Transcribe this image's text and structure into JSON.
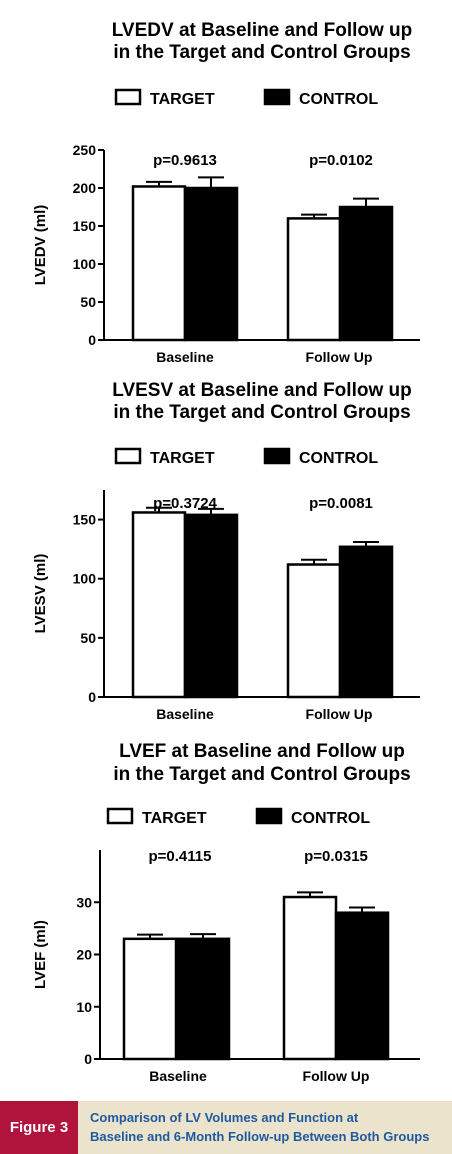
{
  "chart_data": [
    {
      "type": "bar",
      "title": [
        "LVEDV at Baseline and Follow up",
        "in the Target and Control Groups"
      ],
      "ylabel": "LVEDV (ml)",
      "ylim": [
        0,
        250
      ],
      "yticks": [
        0,
        50,
        100,
        150,
        200,
        250
      ],
      "categories": [
        "Baseline",
        "Follow Up"
      ],
      "legend_position": "top-center",
      "series": [
        {
          "name": "TARGET",
          "color": "#ffffff",
          "values": [
            202,
            160
          ],
          "error": [
            6,
            5
          ]
        },
        {
          "name": "CONTROL",
          "color": "#000000",
          "values": [
            200,
            175
          ],
          "error": [
            14,
            11
          ]
        }
      ],
      "annotations": [
        "p=0.9613",
        "p=0.0102"
      ]
    },
    {
      "type": "bar",
      "title": [
        "LVESV at Baseline and Follow up",
        "in the Target and Control Groups"
      ],
      "ylabel": "LVESV (ml)",
      "ylim": [
        0,
        175
      ],
      "yticks": [
        0,
        50,
        100,
        150
      ],
      "categories": [
        "Baseline",
        "Follow Up"
      ],
      "legend_position": "top-center",
      "series": [
        {
          "name": "TARGET",
          "color": "#ffffff",
          "values": [
            156,
            112
          ],
          "error": [
            4,
            4
          ]
        },
        {
          "name": "CONTROL",
          "color": "#000000",
          "values": [
            154,
            127
          ],
          "error": [
            5,
            4
          ]
        }
      ],
      "annotations": [
        "p=0.3724",
        "p=0.0081"
      ]
    },
    {
      "type": "bar",
      "title": [
        "LVEF at Baseline and Follow up",
        "in the Target and Control Groups"
      ],
      "ylabel": "LVEF (ml)",
      "ylim": [
        0,
        40
      ],
      "yticks": [
        0,
        10,
        20,
        30
      ],
      "categories": [
        "Baseline",
        "Follow Up"
      ],
      "legend_position": "top-center",
      "series": [
        {
          "name": "TARGET",
          "color": "#ffffff",
          "values": [
            23,
            31
          ],
          "error": [
            0.8,
            0.9
          ]
        },
        {
          "name": "CONTROL",
          "color": "#000000",
          "values": [
            23,
            28
          ],
          "error": [
            0.9,
            1.0
          ]
        }
      ],
      "annotations": [
        "p=0.4115",
        "p=0.0315"
      ]
    }
  ],
  "figure": {
    "label": "Figure 3",
    "caption_lines": [
      "Comparison of LV Volumes and Function at",
      "Baseline and 6-Month Follow-up Between Both Groups"
    ],
    "label_color": "#b0143c",
    "caption_color": "#1f5aa0",
    "caption_bg": "#ece3cc"
  }
}
